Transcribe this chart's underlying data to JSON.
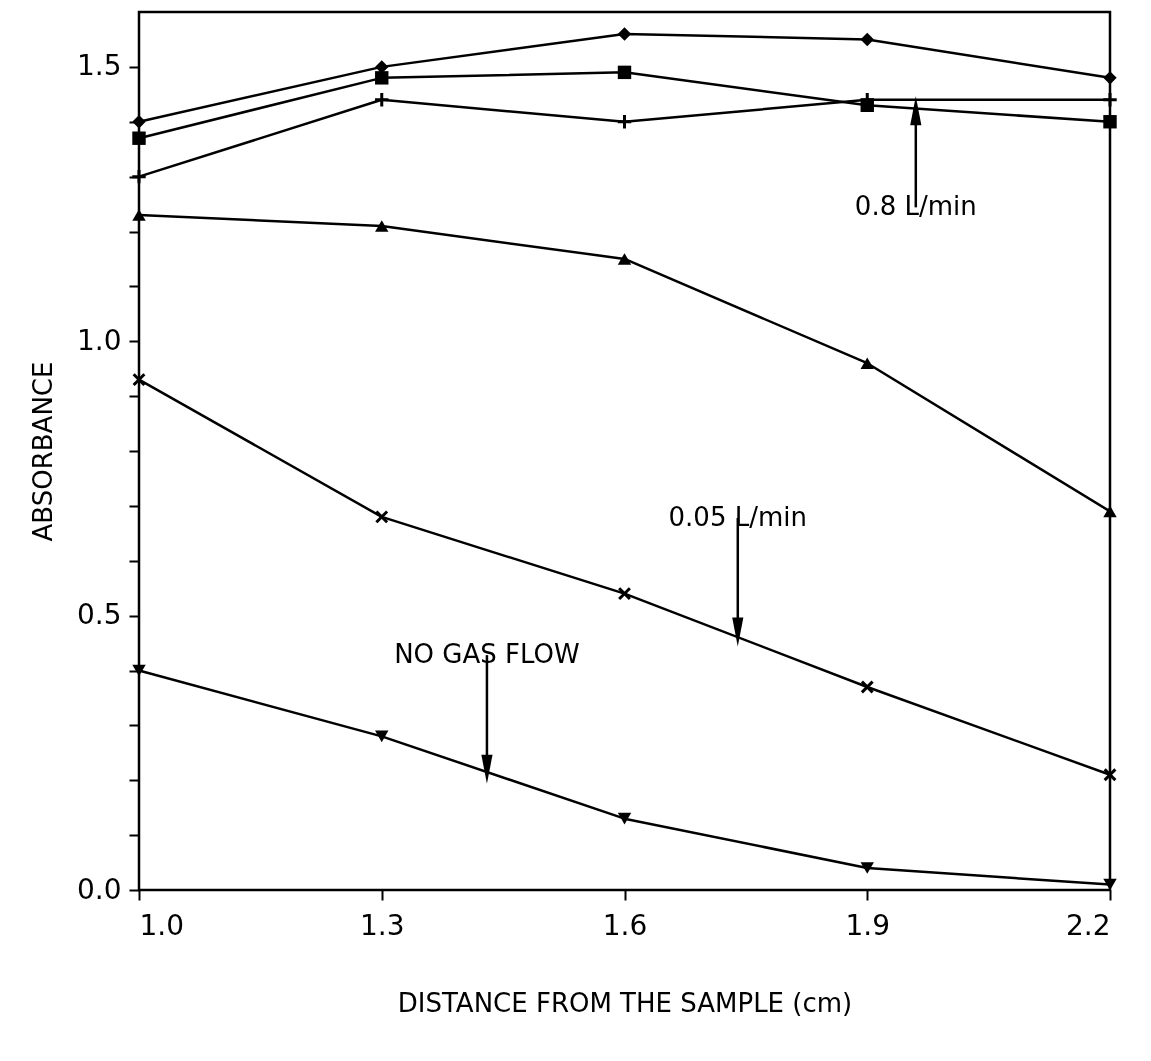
{
  "chart_data": {
    "type": "line",
    "xlabel": "DISTANCE FROM THE SAMPLE (cm)",
    "ylabel": "ABSORBANCE",
    "x": [
      1.0,
      1.3,
      1.6,
      1.9,
      2.2
    ],
    "series": [
      {
        "color": "#000000",
        "marker": "diamond",
        "values": [
          1.4,
          1.5,
          1.56,
          1.55,
          1.48
        ]
      },
      {
        "color": "#000000",
        "marker": "square",
        "values": [
          1.37,
          1.48,
          1.49,
          1.43,
          1.4
        ]
      },
      {
        "color": "#000000",
        "marker": "cross",
        "values": [
          1.3,
          1.44,
          1.4,
          1.44,
          1.44
        ]
      },
      {
        "color": "#000000",
        "marker": "triangle",
        "values": [
          1.23,
          1.21,
          1.15,
          0.96,
          0.69
        ]
      },
      {
        "color": "#000000",
        "marker": "x",
        "values": [
          0.93,
          0.68,
          0.54,
          0.37,
          0.21
        ]
      },
      {
        "color": "#000000",
        "marker": "triangle-down",
        "values": [
          0.4,
          0.28,
          0.13,
          0.04,
          0.01
        ]
      }
    ],
    "annotations": [
      {
        "text": "0.8 L/min",
        "x": 1.96,
        "y": 1.42
      },
      {
        "text": "0.05 L/min",
        "x": 1.74,
        "y": 0.47
      },
      {
        "text": "NO GAS FLOW",
        "x": 1.43,
        "y": 0.22
      }
    ],
    "xlim": [
      1.0,
      2.2
    ],
    "xticks": [
      {
        "value": 1,
        "label": "1.0"
      },
      1.3,
      1.6,
      1.9,
      2.2
    ],
    "ylim": [
      0,
      1.6
    ],
    "yticks": [
      {
        "value": 0,
        "label": "0.0"
      },
      {
        "value": 0.1,
        "label": null
      },
      {
        "value": 0.2,
        "label": null
      },
      {
        "value": 0.3,
        "label": null
      },
      {
        "value": 0.4,
        "label": null
      },
      0.5,
      {
        "value": 0.6,
        "label": null
      },
      {
        "value": 0.7,
        "label": null
      },
      {
        "value": 0.8,
        "label": null
      },
      {
        "value": 0.9,
        "label": null
      },
      {
        "value": 1,
        "label": "1.0"
      },
      {
        "value": 1.1,
        "label": null
      },
      {
        "value": 1.2,
        "label": null
      },
      {
        "value": 1.3,
        "label": null
      },
      {
        "value": 1.4,
        "label": null
      },
      1.5
    ],
    "grid": false,
    "legend": false,
    "line_style": "solid"
  }
}
